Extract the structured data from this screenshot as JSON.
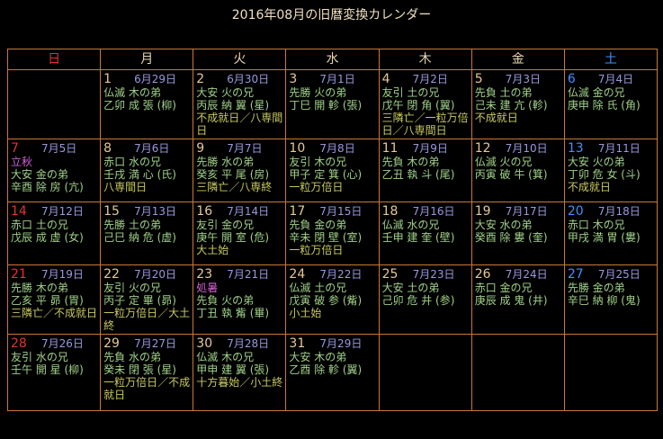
{
  "title": "2016年08月の旧暦変換カレンダー",
  "weekday_header": [
    "日",
    "月",
    "火",
    "水",
    "木",
    "金",
    "土"
  ],
  "colors": {
    "background": "#000000",
    "title_text": "#f0e0c0",
    "table_border": "#c87838",
    "sunday": "#e83030",
    "saturday": "#4090ff",
    "weekday_day_number": "#e6c896",
    "old_calendar_date": "#9898e0",
    "main_text": "#a0d088",
    "special_notes": "#c8c860",
    "sekki": "#d060d0"
  },
  "weeks": [
    [
      null,
      {
        "day": "1",
        "old_date": "6月29日",
        "rokuyo": "仏滅 木の弟",
        "eto": "乙卯 成 張 (柳)"
      },
      {
        "day": "2",
        "old_date": "6月30日",
        "rokuyo": "大安 火の兄",
        "eto": "丙辰 納 翼 (星)",
        "notes": "不成就日／八専間日"
      },
      {
        "day": "3",
        "old_date": "7月1日",
        "rokuyo": "先勝 火の弟",
        "eto": "丁巳 開 軫 (張)"
      },
      {
        "day": "4",
        "old_date": "7月2日",
        "rokuyo": "友引 土の兄",
        "eto": "戊午 閉 角 (翼)",
        "notes": "三隣亡／一粒万倍日／八専間日"
      },
      {
        "day": "5",
        "old_date": "7月3日",
        "rokuyo": "先負 土の弟",
        "eto": "己未 建 亢 (軫)",
        "notes": "不成就日"
      },
      {
        "day": "6",
        "old_date": "7月4日",
        "rokuyo": "仏滅 金の兄",
        "eto": "庚申 除 氏 (角)"
      }
    ],
    [
      {
        "day": "7",
        "old_date": "7月5日",
        "sekki": "立秋",
        "rokuyo": "大安 金の弟",
        "eto": "辛酉 除 房 (亢)"
      },
      {
        "day": "8",
        "old_date": "7月6日",
        "rokuyo": "赤口 水の兄",
        "eto": "壬戌 満 心 (氏)",
        "notes": "八専間日"
      },
      {
        "day": "9",
        "old_date": "7月7日",
        "rokuyo": "先勝 水の弟",
        "eto": "癸亥 平 尾 (房)",
        "notes": "三隣亡／八専終"
      },
      {
        "day": "10",
        "old_date": "7月8日",
        "rokuyo": "友引 木の兄",
        "eto": "甲子 定 箕 (心)",
        "notes": "一粒万倍日"
      },
      {
        "day": "11",
        "old_date": "7月9日",
        "rokuyo": "先負 木の弟",
        "eto": "乙丑 執 斗 (尾)"
      },
      {
        "day": "12",
        "old_date": "7月10日",
        "rokuyo": "仏滅 火の兄",
        "eto": "丙寅 破 牛 (箕)"
      },
      {
        "day": "13",
        "old_date": "7月11日",
        "rokuyo": "大安 火の弟",
        "eto": "丁卯 危 女 (斗)",
        "notes": "不成就日"
      }
    ],
    [
      {
        "day": "14",
        "old_date": "7月12日",
        "rokuyo": "赤口 土の兄",
        "eto": "戊辰 成 虚 (女)"
      },
      {
        "day": "15",
        "old_date": "7月13日",
        "rokuyo": "先勝 土の弟",
        "eto": "己巳 納 危 (虚)"
      },
      {
        "day": "16",
        "old_date": "7月14日",
        "rokuyo": "友引 金の兄",
        "eto": "庚午 開 室 (危)",
        "notes": "大土始"
      },
      {
        "day": "17",
        "old_date": "7月15日",
        "rokuyo": "先負 金の弟",
        "eto": "辛未 閉 壁 (室)",
        "notes": "一粒万倍日"
      },
      {
        "day": "18",
        "old_date": "7月16日",
        "rokuyo": "仏滅 水の兄",
        "eto": "壬申 建 奎 (壁)"
      },
      {
        "day": "19",
        "old_date": "7月17日",
        "rokuyo": "大安 水の弟",
        "eto": "癸酉 除 婁 (奎)"
      },
      {
        "day": "20",
        "old_date": "7月18日",
        "rokuyo": "赤口 木の兄",
        "eto": "甲戌 満 胃 (婁)"
      }
    ],
    [
      {
        "day": "21",
        "old_date": "7月19日",
        "rokuyo": "先勝 木の弟",
        "eto": "乙亥 平 昴 (胃)",
        "notes": "三隣亡／不成就日"
      },
      {
        "day": "22",
        "old_date": "7月20日",
        "rokuyo": "友引 火の兄",
        "eto": "丙子 定 畢 (昴)",
        "notes": "一粒万倍日／大土終"
      },
      {
        "day": "23",
        "old_date": "7月21日",
        "sekki": "処暑",
        "rokuyo": "先負 火の弟",
        "eto": "丁丑 執 觜 (畢)"
      },
      {
        "day": "24",
        "old_date": "7月22日",
        "rokuyo": "仏滅 土の兄",
        "eto": "戊寅 破 参 (觜)",
        "notes": "小土始"
      },
      {
        "day": "25",
        "old_date": "7月23日",
        "rokuyo": "大安 土の弟",
        "eto": "己卯 危 井 (参)"
      },
      {
        "day": "26",
        "old_date": "7月24日",
        "rokuyo": "赤口 金の兄",
        "eto": "庚辰 成 鬼 (井)"
      },
      {
        "day": "27",
        "old_date": "7月25日",
        "rokuyo": "先勝 金の弟",
        "eto": "辛巳 納 柳 (鬼)"
      }
    ],
    [
      {
        "day": "28",
        "old_date": "7月26日",
        "rokuyo": "友引 水の兄",
        "eto": "壬午 開 星 (柳)"
      },
      {
        "day": "29",
        "old_date": "7月27日",
        "rokuyo": "先負 水の弟",
        "eto": "癸未 閉 張 (星)",
        "notes": "一粒万倍日／不成就日"
      },
      {
        "day": "30",
        "old_date": "7月28日",
        "rokuyo": "仏滅 木の兄",
        "eto": "甲申 建 翼 (張)",
        "notes": "十方暮始／小土終"
      },
      {
        "day": "31",
        "old_date": "7月29日",
        "rokuyo": "大安 木の弟",
        "eto": "乙酉 除 軫 (翼)"
      },
      null,
      null,
      null
    ]
  ]
}
